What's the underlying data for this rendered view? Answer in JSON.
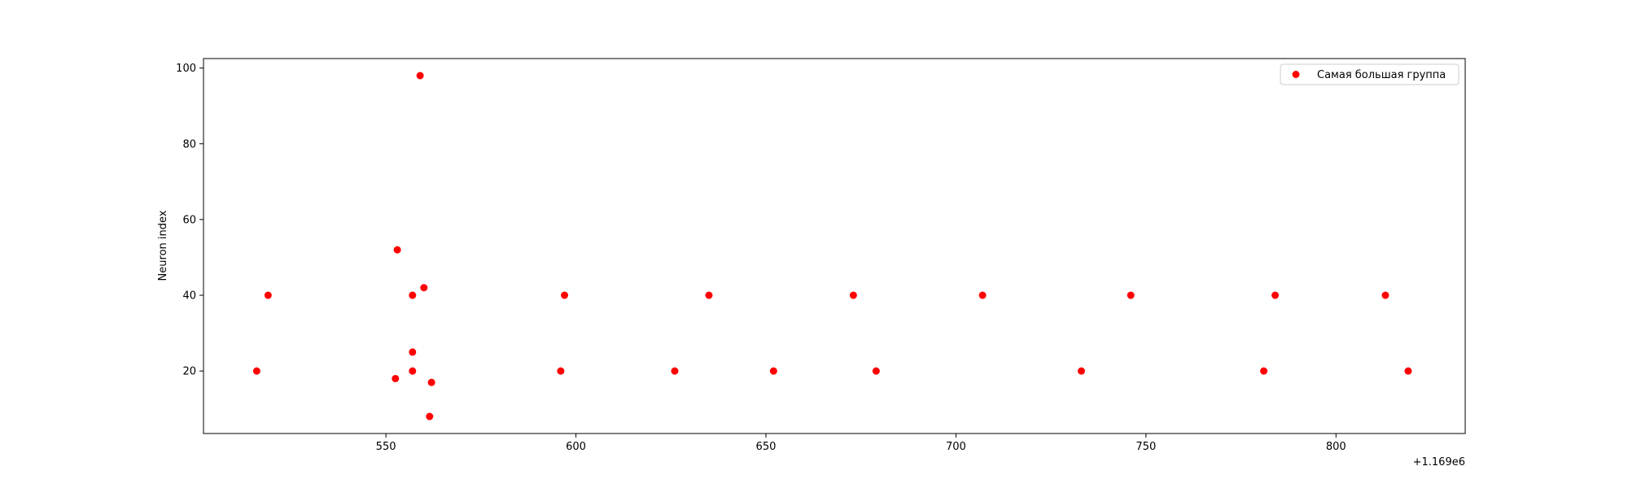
{
  "chart_data": {
    "type": "scatter",
    "xlabel": "",
    "ylabel": "Neuron index",
    "x_offset_label": "+1.169e6",
    "x_offset": 1169000,
    "xlim": [
      1169502,
      1169834
    ],
    "ylim": [
      3.5,
      102.5
    ],
    "x_ticks": [
      1169550,
      1169600,
      1169650,
      1169700,
      1169750,
      1169800
    ],
    "x_tick_labels": [
      "550",
      "600",
      "650",
      "700",
      "750",
      "800"
    ],
    "y_ticks": [
      20,
      40,
      60,
      80,
      100
    ],
    "y_tick_labels": [
      "20",
      "40",
      "60",
      "80",
      "100"
    ],
    "grid": false,
    "legend": {
      "placement": "top-right",
      "entries": [
        "Самая большая группа"
      ]
    },
    "series": [
      {
        "name": "Самая большая группа",
        "color": "#ff0000",
        "points": [
          [
            1169516,
            20
          ],
          [
            1169519,
            40
          ],
          [
            1169552.5,
            18
          ],
          [
            1169553,
            52
          ],
          [
            1169557,
            40
          ],
          [
            1169557,
            25
          ],
          [
            1169557,
            20
          ],
          [
            1169559,
            98
          ],
          [
            1169560,
            42
          ],
          [
            1169561.5,
            8
          ],
          [
            1169562,
            17
          ],
          [
            1169596,
            20
          ],
          [
            1169597,
            40
          ],
          [
            1169626,
            20
          ],
          [
            1169635,
            40
          ],
          [
            1169652,
            20
          ],
          [
            1169673,
            40
          ],
          [
            1169679,
            20
          ],
          [
            1169707,
            40
          ],
          [
            1169733,
            20
          ],
          [
            1169746,
            40
          ],
          [
            1169781,
            20
          ],
          [
            1169784,
            40
          ],
          [
            1169813,
            40
          ],
          [
            1169819,
            20
          ]
        ]
      }
    ]
  }
}
